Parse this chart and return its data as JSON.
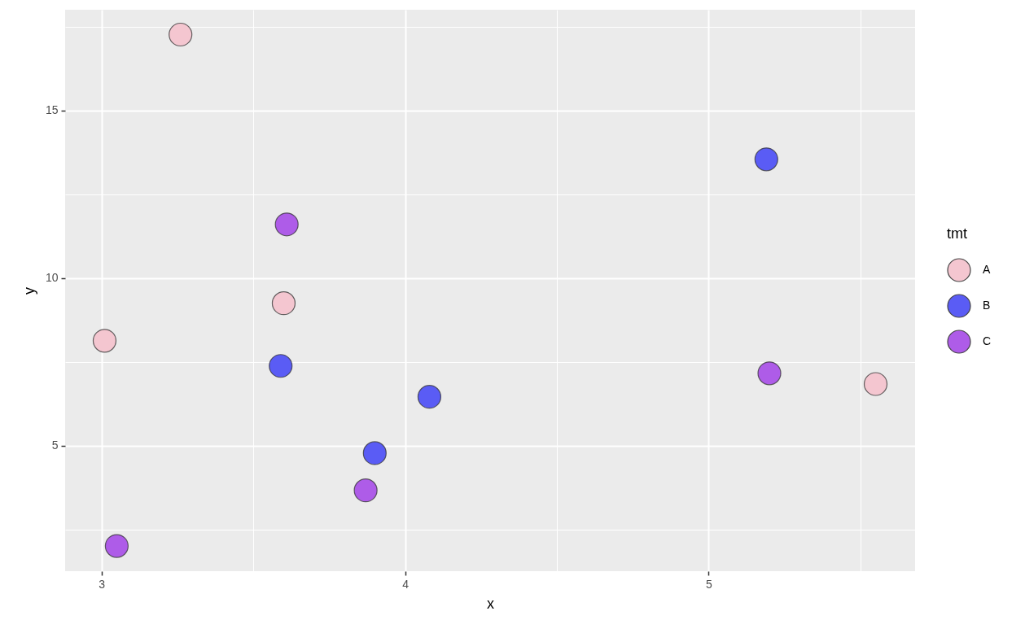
{
  "chart_data": {
    "type": "scatter",
    "xlabel": "x",
    "ylabel": "y",
    "legend_title": "tmt",
    "series": [
      {
        "name": "A",
        "color": "#f4c6d0",
        "x": [
          3.26,
          3.6,
          3.01,
          5.55
        ],
        "values": [
          17.26,
          9.25,
          8.13,
          6.84
        ]
      },
      {
        "name": "B",
        "color": "#5a5cf5",
        "x": [
          5.19,
          3.59,
          4.08,
          3.9
        ],
        "values": [
          13.54,
          7.38,
          6.46,
          4.78
        ]
      },
      {
        "name": "C",
        "color": "#ae5ce8",
        "x": [
          3.61,
          3.87,
          3.05,
          5.2
        ],
        "values": [
          11.6,
          3.67,
          2.01,
          7.16
        ]
      }
    ],
    "xlim": [
      2.88,
      5.68
    ],
    "ylim": [
      1.26,
      18.0
    ],
    "xticks": [
      3,
      {
        "value": 3.5,
        "label": null
      },
      4,
      {
        "value": 4.5,
        "label": null
      },
      5,
      {
        "value": 5.5,
        "label": null
      }
    ],
    "yticks": [
      {
        "value": 2.5,
        "label": null
      },
      5,
      {
        "value": 7.5,
        "label": null
      },
      10,
      {
        "value": 12.5,
        "label": null
      },
      15,
      {
        "value": 17.5,
        "label": null
      }
    ],
    "grid": true,
    "legend": "right",
    "marker": "circle"
  }
}
